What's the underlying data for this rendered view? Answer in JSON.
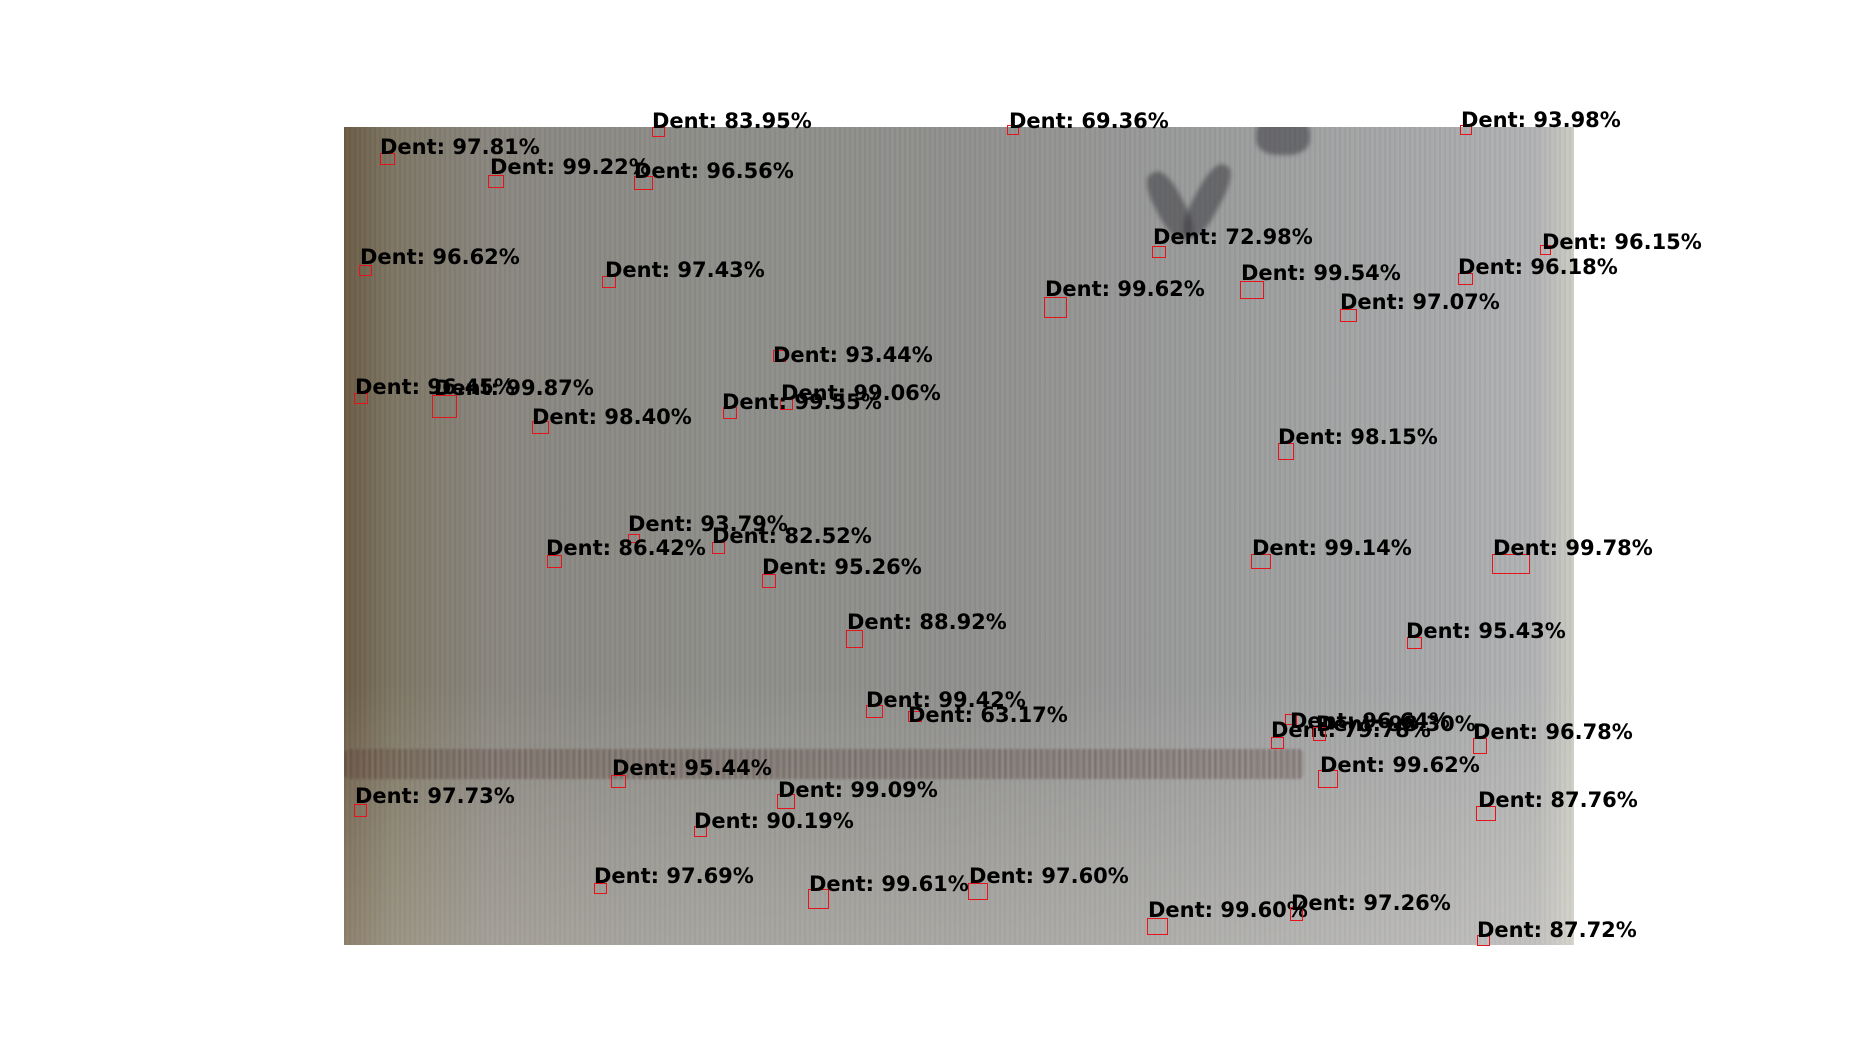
{
  "figure": {
    "photo": "metal surface with dent detections",
    "box_color": "#e8121a",
    "label_color": "#000000"
  },
  "detections": [
    {
      "label": "Dent: 97.81%"
    },
    {
      "label": "Dent: 99.22%"
    },
    {
      "label": "Dent: 83.95%"
    },
    {
      "label": "Dent: 96.56%"
    },
    {
      "label": "Dent: 69.36%"
    },
    {
      "label": "Dent: 93.98%"
    },
    {
      "label": "Dent: 72.98%"
    },
    {
      "label": "Dent: 96.15%"
    },
    {
      "label": "Dent: 96.62%"
    },
    {
      "label": "Dent: 97.43%"
    },
    {
      "label": "Dent: 99.54%"
    },
    {
      "label": "Dent: 96.18%"
    },
    {
      "label": "Dent: 99.62%"
    },
    {
      "label": "Dent: 97.07%"
    },
    {
      "label": "Dent: 93.44%"
    },
    {
      "label": "Dent: 96.45%"
    },
    {
      "label": "Dent: 99.87%"
    },
    {
      "label": "Dent: 99.06%"
    },
    {
      "label": "Dent: 99.55%"
    },
    {
      "label": "Dent: 98.40%"
    },
    {
      "label": "Dent: 98.15%"
    },
    {
      "label": "Dent: 93.79%"
    },
    {
      "label": "Dent: 82.52%"
    },
    {
      "label": "Dent: 86.42%"
    },
    {
      "label": "Dent: 99.14%"
    },
    {
      "label": "Dent: 99.78%"
    },
    {
      "label": "Dent: 95.26%"
    },
    {
      "label": "Dent: 88.92%"
    },
    {
      "label": "Dent: 95.43%"
    },
    {
      "label": "Dent: 99.42%"
    },
    {
      "label": "Dent: 63.17%"
    },
    {
      "label": "Dent: 96.64%"
    },
    {
      "label": "Dent: 79.78%"
    },
    {
      "label": "Dent: 98.30%"
    },
    {
      "label": "Dent: 96.78%"
    },
    {
      "label": "Dent: 95.44%"
    },
    {
      "label": "Dent: 99.62%"
    },
    {
      "label": "Dent: 99.09%"
    },
    {
      "label": "Dent: 97.73%"
    },
    {
      "label": "Dent: 87.76%"
    },
    {
      "label": "Dent: 90.19%"
    },
    {
      "label": "Dent: 97.69%"
    },
    {
      "label": "Dent: 99.61%"
    },
    {
      "label": "Dent: 97.60%"
    },
    {
      "label": "Dent: 99.60%"
    },
    {
      "label": "Dent: 97.26%"
    },
    {
      "label": "Dent: 87.72%"
    }
  ]
}
